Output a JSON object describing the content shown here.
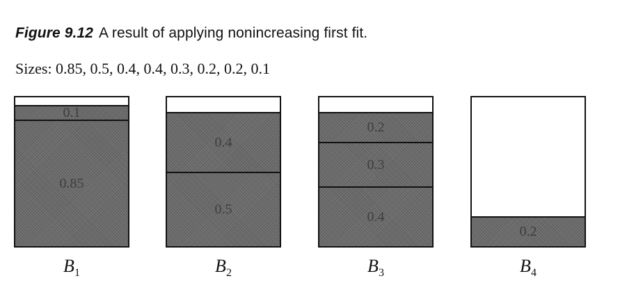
{
  "caption": {
    "number": "Figure 9.12",
    "text": "A result of applying nonincreasing first fit."
  },
  "sizes": "Sizes: 0.85, 0.5, 0.4, 0.4, 0.3, 0.2, 0.2, 0.1",
  "capacity": 1.0,
  "bins": [
    {
      "label": "B",
      "sub": "1",
      "items": [
        {
          "value": 0.85,
          "label": "0.85"
        },
        {
          "value": 0.1,
          "label": "0.1"
        }
      ]
    },
    {
      "label": "B",
      "sub": "2",
      "items": [
        {
          "value": 0.5,
          "label": "0.5"
        },
        {
          "value": 0.4,
          "label": "0.4"
        }
      ]
    },
    {
      "label": "B",
      "sub": "3",
      "items": [
        {
          "value": 0.4,
          "label": "0.4"
        },
        {
          "value": 0.3,
          "label": "0.3"
        },
        {
          "value": 0.2,
          "label": "0.2"
        }
      ]
    },
    {
      "label": "B",
      "sub": "4",
      "items": [
        {
          "value": 0.2,
          "label": "0.2"
        }
      ]
    }
  ]
}
